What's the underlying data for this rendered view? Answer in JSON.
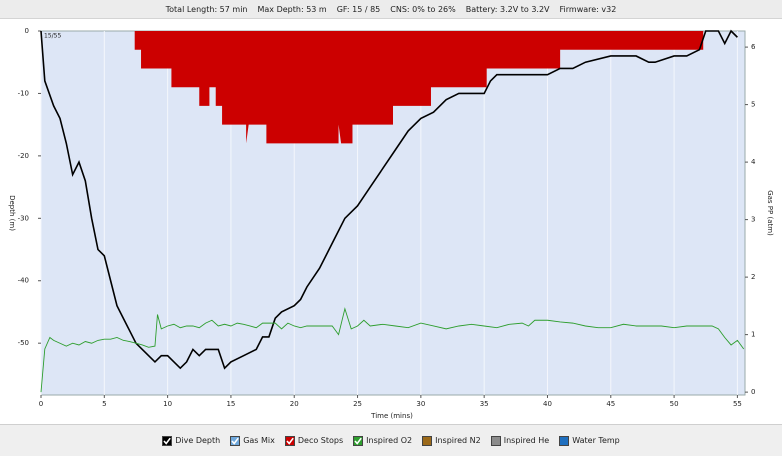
{
  "chart_data": {
    "type": "line",
    "info": [
      "Total Length: 57 min",
      "Max Depth: 53 m",
      "GF: 15 / 85",
      "CNS: 0% to 26%",
      "Battery: 3.2V to 3.2V",
      "Firmware: v32"
    ],
    "corner_label": "15/55",
    "x_label": "Time (mins)",
    "y_label": "Depth (m)",
    "y2_label": "Gas PP (atm)",
    "xlim": [
      0,
      55.6
    ],
    "ylim": [
      -58.3,
      0
    ],
    "y2lim": [
      -0.05,
      6.28
    ],
    "xticks": [
      0,
      5,
      10,
      15,
      20,
      25,
      30,
      35,
      40,
      45,
      50,
      55
    ],
    "yticks": [
      0,
      -10,
      -20,
      -30,
      -40,
      -50
    ],
    "y2ticks": [
      0,
      1,
      2,
      3,
      4,
      5,
      6
    ],
    "grid": true,
    "background": "#dde6f6",
    "series": [
      {
        "name": "Dive Depth",
        "color": "#000000",
        "style": "line",
        "checked": true,
        "x": [
          0,
          0.3,
          1,
          1.5,
          2,
          2.5,
          3,
          3.5,
          4,
          4.5,
          5,
          5.5,
          6,
          6.5,
          7,
          7.5,
          8,
          8.5,
          9,
          9.5,
          10,
          10.5,
          11,
          11.5,
          12,
          12.5,
          13,
          14,
          14.5,
          15,
          16,
          17,
          17.5,
          18,
          18.5,
          19,
          20,
          20.5,
          21,
          22,
          23,
          24,
          25,
          26,
          27,
          28,
          29,
          30,
          31,
          32,
          33,
          34,
          35,
          35.5,
          36,
          37,
          38,
          39,
          40,
          41,
          42,
          43,
          45,
          47,
          48,
          48.5,
          50,
          51,
          52,
          52.5,
          53.5,
          54,
          54.5,
          55
        ],
        "values": [
          0,
          -8,
          -12,
          -14,
          -18,
          -23,
          -21,
          -24,
          -30,
          -35,
          -36,
          -40,
          -44,
          -46,
          -48,
          -50,
          -51,
          -52,
          -53,
          -52,
          -52,
          -53,
          -54,
          -53,
          -51,
          -52,
          -51,
          -51,
          -54,
          -53,
          -52,
          -51,
          -49,
          -49,
          -46,
          -45,
          -44,
          -43,
          -41,
          -38,
          -34,
          -30,
          -28,
          -25,
          -22,
          -19,
          -16,
          -14,
          -13,
          -11,
          -10,
          -10,
          -10,
          -8,
          -7,
          -7,
          -7,
          -7,
          -7,
          -6,
          -6,
          -5,
          -4,
          -4,
          -5,
          -5,
          -4,
          -4,
          -3,
          0,
          0,
          -2,
          0,
          -1
        ]
      },
      {
        "name": "Gas Mix",
        "color": "#6fa8dc",
        "style": "line",
        "checked": true,
        "x": [],
        "values": []
      },
      {
        "name": "Deco Stops",
        "color": "#cc0000",
        "style": "area",
        "checked": true,
        "x": [
          7.4,
          7.4,
          7.9,
          7.9,
          10.3,
          10.3,
          12.5,
          12.5,
          13.3,
          13.3,
          13.8,
          13.8,
          14.3,
          14.3,
          16.2,
          16.2,
          16.4,
          17.8,
          17.8,
          23.5,
          23.5,
          23.7,
          24.6,
          24.6,
          27.8,
          27.8,
          30.8,
          30.8,
          35.2,
          35.2,
          41,
          41,
          52.3,
          52.3
        ],
        "values": [
          0,
          -3,
          -3,
          -6,
          -6,
          -9,
          -9,
          -12,
          -12,
          -9,
          -9,
          -12,
          -12,
          -15,
          -15,
          -18,
          -15,
          -15,
          -18,
          -18,
          -15,
          -18,
          -18,
          -15,
          -15,
          -12,
          -12,
          -9,
          -9,
          -6,
          -6,
          -3,
          -3,
          0
        ]
      },
      {
        "name": "Inspired O2",
        "color": "#2e9e2e",
        "style": "line",
        "axis": "y2",
        "checked": true,
        "x": [
          0,
          0.3,
          0.7,
          1,
          1.5,
          2,
          2.5,
          3,
          3.5,
          4,
          4.5,
          5,
          5.5,
          6,
          6.5,
          7,
          7.5,
          8,
          8.5,
          9,
          9.2,
          9.5,
          10,
          10.5,
          11,
          11.5,
          12,
          12.5,
          13,
          13.5,
          14,
          14.5,
          15,
          15.5,
          16,
          16.5,
          17,
          17.5,
          18,
          18.5,
          19,
          19.5,
          20,
          20.5,
          21,
          22,
          23,
          23.5,
          24,
          24.5,
          25,
          25.5,
          26,
          27,
          28,
          29,
          30,
          31,
          32,
          33,
          34,
          35,
          36,
          37,
          38,
          38.5,
          39,
          40,
          41,
          42,
          43,
          44,
          45,
          46,
          47,
          48,
          49,
          50,
          51,
          52,
          53,
          53.5,
          54,
          54.5,
          55,
          55.5
        ],
        "values": [
          0,
          0.75,
          0.95,
          0.9,
          0.85,
          0.8,
          0.85,
          0.82,
          0.88,
          0.85,
          0.9,
          0.92,
          0.92,
          0.95,
          0.9,
          0.88,
          0.85,
          0.82,
          0.78,
          0.8,
          1.35,
          1.1,
          1.15,
          1.18,
          1.12,
          1.15,
          1.15,
          1.12,
          1.2,
          1.25,
          1.15,
          1.18,
          1.15,
          1.2,
          1.18,
          1.15,
          1.12,
          1.2,
          1.2,
          1.2,
          1.1,
          1.2,
          1.15,
          1.12,
          1.15,
          1.15,
          1.15,
          1.0,
          1.45,
          1.1,
          1.15,
          1.25,
          1.15,
          1.18,
          1.15,
          1.12,
          1.2,
          1.15,
          1.1,
          1.15,
          1.18,
          1.15,
          1.12,
          1.18,
          1.2,
          1.15,
          1.25,
          1.25,
          1.22,
          1.2,
          1.15,
          1.12,
          1.12,
          1.18,
          1.15,
          1.15,
          1.15,
          1.12,
          1.15,
          1.15,
          1.15,
          1.1,
          0.95,
          0.82,
          0.9,
          0.75
        ]
      },
      {
        "name": "Inspired N2",
        "color": "#9c6a1a",
        "style": "line",
        "checked": false,
        "x": [],
        "values": []
      },
      {
        "name": "Inspired He",
        "color": "#8c8c8c",
        "style": "line",
        "checked": false,
        "x": [],
        "values": []
      },
      {
        "name": "Water Temp",
        "color": "#1f6fbf",
        "style": "line",
        "checked": false,
        "x": [],
        "values": []
      }
    ]
  }
}
